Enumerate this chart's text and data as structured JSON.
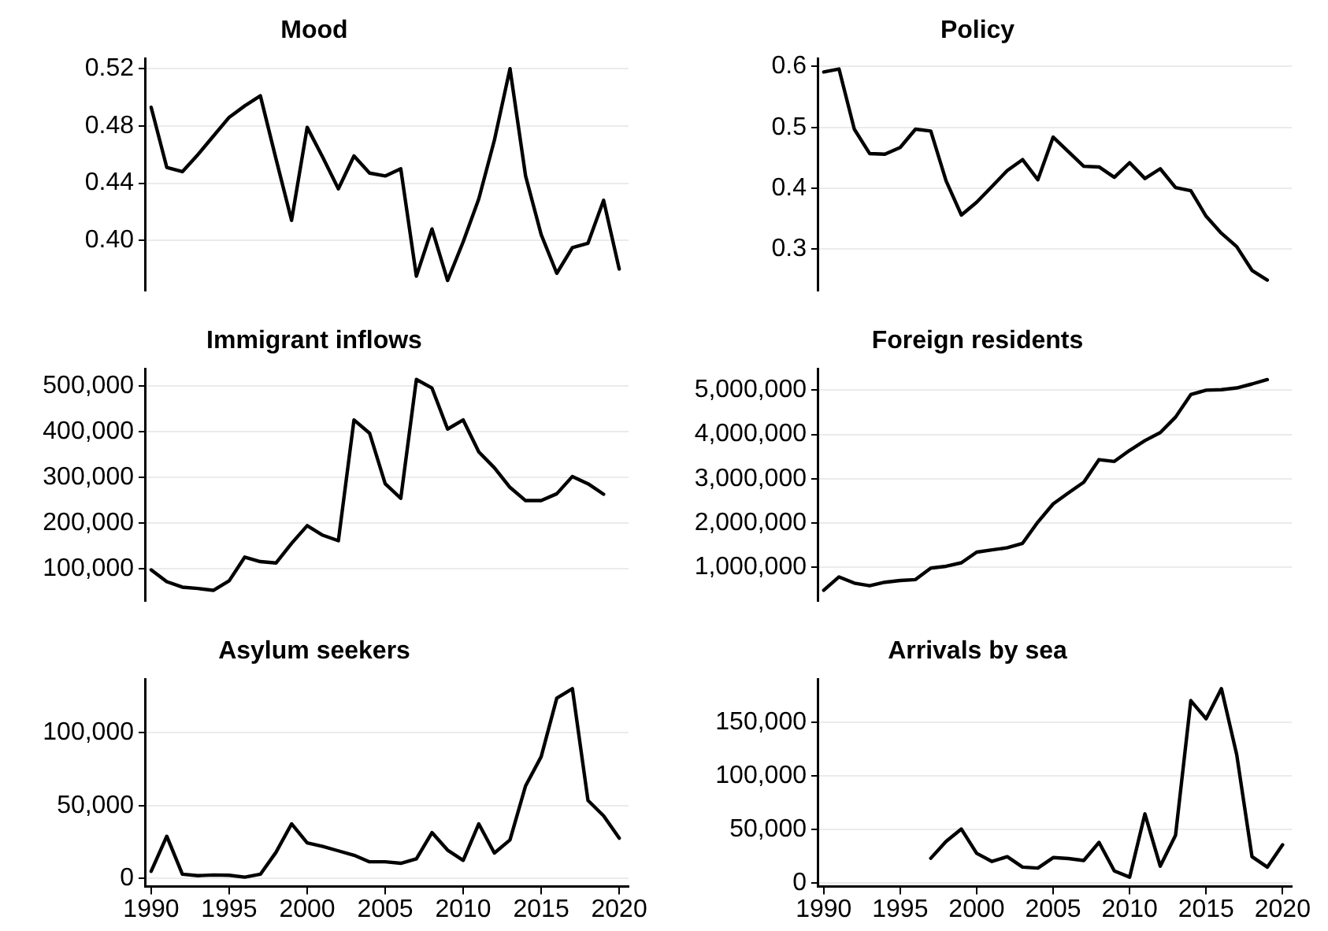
{
  "chart_data": [
    {
      "type": "line",
      "title": "Mood",
      "color": "#000000",
      "grid": "y",
      "tick_labels": "y",
      "xlim": [
        1989.6,
        2020.6
      ],
      "xticks": [
        1990,
        1995,
        2000,
        2005,
        2010,
        2015,
        2020
      ],
      "ylim": [
        0.365,
        0.527
      ],
      "yticks": [
        {
          "value": 0.4,
          "label": "0.40"
        },
        0.44,
        0.48,
        0.52
      ],
      "x": [
        1990,
        1991,
        1992,
        1993,
        1994,
        1995,
        1996,
        1997,
        1998,
        1999,
        2000,
        2001,
        2002,
        2003,
        2004,
        2005,
        2006,
        2007,
        2008,
        2009,
        2010,
        2011,
        2012,
        2013,
        2014,
        2015,
        2016,
        2017,
        2018,
        2019,
        2020
      ],
      "values": [
        0.493,
        0.451,
        0.448,
        0.46,
        0.473,
        0.486,
        0.494,
        0.501,
        0.457,
        0.414,
        0.479,
        0.458,
        0.436,
        0.459,
        0.447,
        0.445,
        0.45,
        0.375,
        0.408,
        0.372,
        0.399,
        0.429,
        0.47,
        0.52,
        0.445,
        0.404,
        0.377,
        0.395,
        0.398,
        0.428,
        0.38
      ]
    },
    {
      "type": "line",
      "title": "Policy",
      "color": "#000000",
      "grid": "y",
      "tick_labels": "y",
      "xlim": [
        1989.6,
        2020.6
      ],
      "xticks": [
        1990,
        1995,
        2000,
        2005,
        2010,
        2015,
        2020
      ],
      "ylim": [
        0.232,
        0.613
      ],
      "yticks": [
        0.3,
        0.4,
        0.5,
        0.6
      ],
      "x": [
        1990,
        1991,
        1992,
        1993,
        1994,
        1995,
        1996,
        1997,
        1998,
        1999,
        2000,
        2001,
        2002,
        2003,
        2004,
        2005,
        2006,
        2007,
        2008,
        2009,
        2010,
        2011,
        2012,
        2013,
        2014,
        2015,
        2016,
        2017,
        2018,
        2019
      ],
      "values": [
        0.591,
        0.596,
        0.497,
        0.457,
        0.456,
        0.467,
        0.497,
        0.494,
        0.412,
        0.356,
        0.377,
        0.403,
        0.429,
        0.447,
        0.414,
        0.484,
        0.46,
        0.436,
        0.435,
        0.418,
        0.442,
        0.416,
        0.432,
        0.401,
        0.396,
        0.354,
        0.326,
        0.304,
        0.265,
        0.249
      ]
    },
    {
      "type": "line",
      "title": "Immigrant inflows",
      "color": "#000000",
      "grid": "y",
      "tick_labels": "y",
      "xlim": [
        1989.6,
        2020.6
      ],
      "xticks": [
        1990,
        1995,
        2000,
        2005,
        2010,
        2015,
        2020
      ],
      "ylim": [
        29000,
        538000
      ],
      "yticks": [
        {
          "value": 100000,
          "label": "100,000"
        },
        {
          "value": 200000,
          "label": "200,000"
        },
        {
          "value": 300000,
          "label": "300,000"
        },
        {
          "value": 400000,
          "label": "400,000"
        },
        {
          "value": 500000,
          "label": "500,000"
        }
      ],
      "x": [
        1990,
        1991,
        1992,
        1993,
        1994,
        1995,
        1996,
        1997,
        1998,
        1999,
        2000,
        2001,
        2002,
        2003,
        2004,
        2005,
        2006,
        2007,
        2008,
        2009,
        2010,
        2011,
        2012,
        2013,
        2014,
        2015,
        2016,
        2017,
        2018,
        2019
      ],
      "values": [
        97000,
        71000,
        59000,
        56000,
        52000,
        73000,
        125000,
        115000,
        112000,
        155000,
        194000,
        173000,
        161000,
        426000,
        397000,
        286000,
        254000,
        515000,
        496000,
        406000,
        426000,
        356000,
        321000,
        278000,
        249000,
        249000,
        264000,
        302000,
        286000,
        263000
      ]
    },
    {
      "type": "line",
      "title": "Foreign residents",
      "color": "#000000",
      "grid": "y",
      "tick_labels": "y",
      "xlim": [
        1989.6,
        2020.6
      ],
      "xticks": [
        1990,
        1995,
        2000,
        2005,
        2010,
        2015,
        2020
      ],
      "ylim": [
        240000,
        5480000
      ],
      "yticks": [
        {
          "value": 1000000,
          "label": "1,000,000"
        },
        {
          "value": 2000000,
          "label": "2,000,000"
        },
        {
          "value": 3000000,
          "label": "3,000,000"
        },
        {
          "value": 4000000,
          "label": "4,000,000"
        },
        {
          "value": 5000000,
          "label": "5,000,000"
        }
      ],
      "x": [
        1990,
        1991,
        1992,
        1993,
        1994,
        1995,
        1996,
        1997,
        1998,
        1999,
        2000,
        2001,
        2002,
        2003,
        2004,
        2005,
        2006,
        2007,
        2008,
        2009,
        2010,
        2011,
        2012,
        2013,
        2014,
        2015,
        2016,
        2017,
        2018,
        2019
      ],
      "values": [
        480000,
        780000,
        640000,
        580000,
        660000,
        700000,
        720000,
        980000,
        1020000,
        1100000,
        1340000,
        1390000,
        1440000,
        1540000,
        2020000,
        2430000,
        2680000,
        2920000,
        3430000,
        3390000,
        3640000,
        3860000,
        4040000,
        4390000,
        4900000,
        5000000,
        5010000,
        5050000,
        5140000,
        5240000
      ]
    },
    {
      "type": "line",
      "title": "Asylum seekers",
      "color": "#000000",
      "grid": "y",
      "xlim": [
        1989.6,
        2020.6
      ],
      "xticks": [
        1990,
        1995,
        2000,
        2005,
        2010,
        2015,
        2020
      ],
      "ylim": [
        -5450,
        136450
      ],
      "yticks": [
        0,
        {
          "value": 50000,
          "label": "50,000"
        },
        {
          "value": 100000,
          "label": "100,000"
        }
      ],
      "x": [
        1990,
        1991,
        1992,
        1993,
        1994,
        1995,
        1996,
        1997,
        1998,
        1999,
        2000,
        2001,
        2002,
        2003,
        2004,
        2005,
        2006,
        2007,
        2008,
        2009,
        2010,
        2011,
        2012,
        2013,
        2014,
        2015,
        2016,
        2017,
        2018,
        2019,
        2020
      ],
      "values": [
        5000,
        29000,
        3000,
        2000,
        2500,
        2300,
        1000,
        3000,
        18000,
        37500,
        24500,
        22000,
        19000,
        16000,
        11500,
        11500,
        10500,
        13500,
        31500,
        19500,
        12500,
        37500,
        17500,
        26500,
        63500,
        83500,
        123500,
        130000,
        53500,
        43000,
        27700
      ]
    },
    {
      "type": "line",
      "title": "Arrivals by sea",
      "color": "#000000",
      "grid": "y",
      "xlim": [
        1989.6,
        2020.6
      ],
      "xticks": [
        1990,
        1995,
        2000,
        2005,
        2010,
        2015,
        2020
      ],
      "ylim": [
        -3500,
        190400
      ],
      "yticks": [
        0,
        {
          "value": 50000,
          "label": "50,000"
        },
        {
          "value": 100000,
          "label": "100,000"
        },
        {
          "value": 150000,
          "label": "150,000"
        }
      ],
      "x": [
        1997,
        1998,
        1999,
        2000,
        2001,
        2002,
        2003,
        2004,
        2005,
        2006,
        2007,
        2008,
        2009,
        2010,
        2011,
        2012,
        2013,
        2014,
        2015,
        2016,
        2017,
        2018,
        2019,
        2020
      ],
      "values": [
        23000,
        38700,
        50300,
        27600,
        20000,
        24500,
        14700,
        13800,
        23600,
        22700,
        20900,
        37800,
        11100,
        5300,
        64500,
        15600,
        44500,
        170400,
        153500,
        181600,
        120000,
        24500,
        14700,
        35600
      ]
    }
  ]
}
